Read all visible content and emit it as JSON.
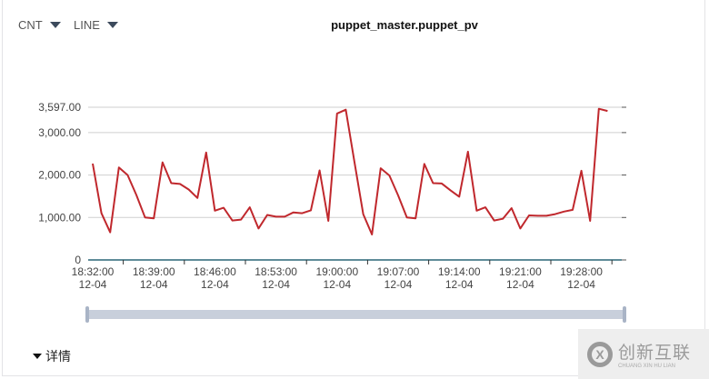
{
  "toolbar": {
    "metric_select": "CNT",
    "chart_type_select": "LINE"
  },
  "title": "puppet_master.puppet_pv",
  "details_toggle": "详情",
  "watermark": {
    "text": "创新互联",
    "subtext": "CHUANG XIN HU LIAN"
  },
  "chart_data": {
    "type": "line",
    "title": "puppet_master.puppet_pv",
    "x_start": "18:32",
    "x_step_minutes": 1,
    "x_tick_labels": [
      {
        "time": "18:32:00",
        "date": "12-04"
      },
      {
        "time": "18:39:00",
        "date": "12-04"
      },
      {
        "time": "18:46:00",
        "date": "12-04"
      },
      {
        "time": "18:53:00",
        "date": "12-04"
      },
      {
        "time": "19:00:00",
        "date": "12-04"
      },
      {
        "time": "19:07:00",
        "date": "12-04"
      },
      {
        "time": "19:14:00",
        "date": "12-04"
      },
      {
        "time": "19:21:00",
        "date": "12-04"
      },
      {
        "time": "19:28:00",
        "date": "12-04"
      }
    ],
    "y_tick_labels": [
      "0",
      "1,000.00",
      "2,000.00",
      "3,000.00",
      "3,597.00"
    ],
    "y_ticks": [
      0,
      1000,
      2000,
      3000,
      3597
    ],
    "ylim": [
      0,
      3597
    ],
    "grid": true,
    "series": [
      {
        "color": "#c0282d",
        "values": [
          2270,
          1100,
          650,
          2180,
          2000,
          1530,
          1000,
          980,
          2300,
          1810,
          1790,
          1660,
          1460,
          2530,
          1160,
          1230,
          930,
          950,
          1240,
          740,
          1060,
          1020,
          1020,
          1120,
          1100,
          1170,
          2110,
          920,
          3450,
          3540,
          2300,
          1080,
          600,
          2160,
          1990,
          1520,
          1000,
          980,
          2260,
          1810,
          1800,
          1640,
          1490,
          2550,
          1160,
          1240,
          930,
          970,
          1220,
          740,
          1050,
          1040,
          1040,
          1080,
          1140,
          1180,
          2100,
          920,
          3560,
          3510
        ]
      }
    ]
  }
}
